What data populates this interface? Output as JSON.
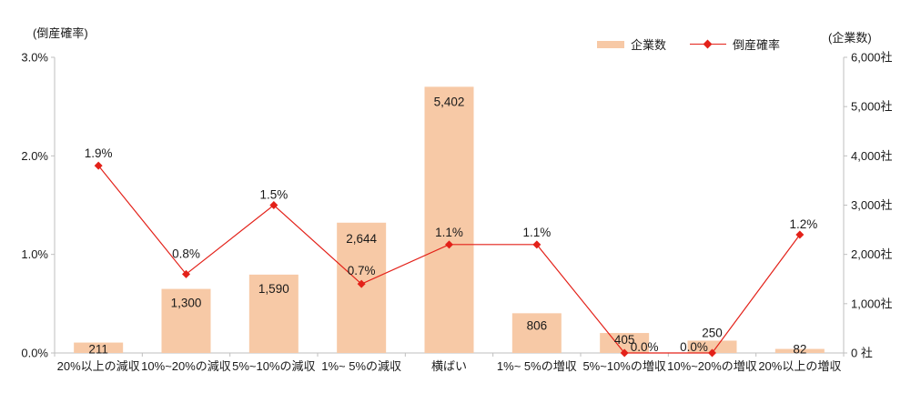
{
  "axis_titles": {
    "left": "(倒産確率)",
    "right": "(企業数)"
  },
  "legend": [
    {
      "label": "企業数",
      "type": "bar"
    },
    {
      "label": "倒産確率",
      "type": "line"
    }
  ],
  "colors": {
    "bar_fill": "#F7C9A6",
    "line": "#E32119",
    "axis_line": "#BFBFBF",
    "text": "#1a1a1a"
  },
  "chart_data": {
    "type": "bar+line combo",
    "categories": [
      "20%以上の減収",
      "10%~20%の減収",
      "5%~10%の減収",
      "1%~ 5%の減収",
      "横ばい",
      "1%~ 5%の増収",
      "5%~10%の増収",
      "10%~20%の増収",
      "20%以上の増収"
    ],
    "series": [
      {
        "name": "企業数",
        "type": "bar",
        "axis": "right",
        "values": [
          211,
          1300,
          1590,
          2644,
          5402,
          806,
          405,
          250,
          82
        ],
        "labels": [
          "211",
          "1,300",
          "1,590",
          "2,644",
          "5,402",
          "806",
          "405",
          "250",
          "82"
        ]
      },
      {
        "name": "倒産確率",
        "type": "line",
        "axis": "left",
        "values": [
          1.9,
          0.8,
          1.5,
          0.7,
          1.1,
          1.1,
          0.0,
          0.0,
          1.2
        ],
        "labels": [
          "1.9%",
          "0.8%",
          "1.5%",
          "0.7%",
          "1.1%",
          "1.1%",
          "0.0%",
          "0.0%",
          "1.2%"
        ]
      }
    ],
    "left_axis": {
      "label": "(倒産確率)",
      "min": 0,
      "max": 3,
      "tick_labels": [
        "0.0%",
        "1.0%",
        "2.0%",
        "3.0%"
      ]
    },
    "right_axis": {
      "label": "(企業数)",
      "min": 0,
      "max": 6000,
      "tick_labels": [
        "0 社",
        "1,000社",
        "2,000社",
        "3,000社",
        "4,000社",
        "5,000社",
        "6,000社"
      ]
    },
    "grid": false,
    "legend_position": "top-right",
    "layout_hints": {
      "bar_label_dy": [
        12,
        20,
        20,
        22,
        21,
        18,
        12,
        -4,
        5
      ],
      "pct_label_dx": [
        0,
        0,
        0,
        0,
        0,
        0,
        22,
        -20,
        4
      ],
      "pct_label_dy": [
        -9,
        -18,
        -7,
        -10,
        -9,
        -9,
        -2,
        -2,
        -7
      ]
    }
  }
}
